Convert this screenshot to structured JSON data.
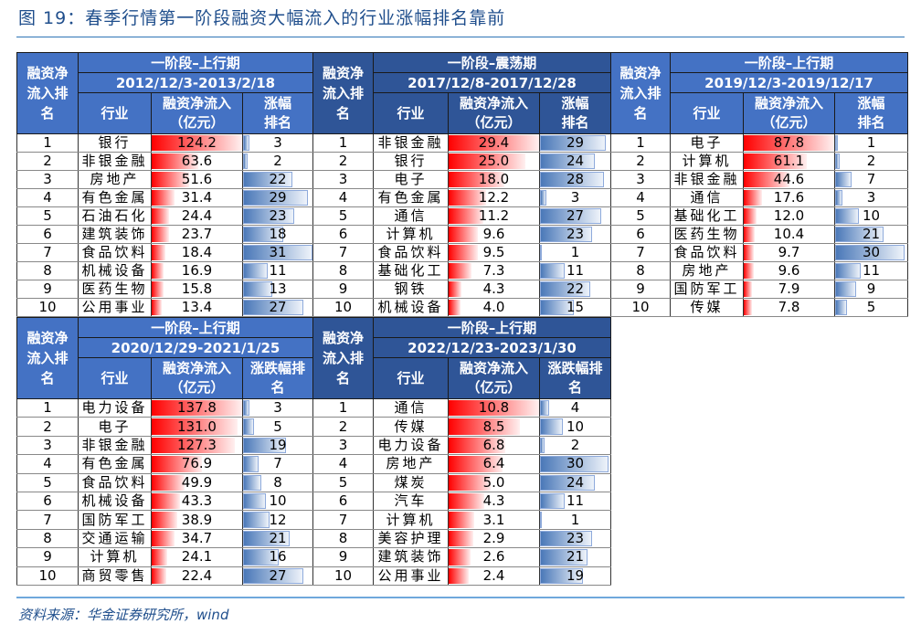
{
  "title": "图 19：春季行情第一阶段融资大幅流入的行业涨幅排名靠前",
  "footer": "资料来源：华金证券研究所，wind",
  "colors": {
    "header_light": "#4472C4",
    "header_dark": "#2F5597",
    "bar_red": "#FF0000",
    "bar_blue": "#4A78B8"
  },
  "headers": {
    "rank": "融资净流入排名",
    "industry": "行业",
    "flow": "融资净流入（亿元）",
    "rise": "涨幅排名",
    "rise_alt": "涨跌幅排名"
  },
  "tables": [
    {
      "phase": "一阶段–上行期",
      "period": "2012/12/3-2013/2/18",
      "rise_header": "涨幅排名",
      "rows": [
        [
          "1",
          "银行",
          "124.2",
          "3"
        ],
        [
          "2",
          "非银金融",
          "63.6",
          "2"
        ],
        [
          "3",
          "房地产",
          "51.6",
          "22"
        ],
        [
          "4",
          "有色金属",
          "31.4",
          "29"
        ],
        [
          "5",
          "石油石化",
          "24.4",
          "23"
        ],
        [
          "6",
          "建筑装饰",
          "23.7",
          "18"
        ],
        [
          "7",
          "食品饮料",
          "18.4",
          "31"
        ],
        [
          "8",
          "机械设备",
          "16.9",
          "11"
        ],
        [
          "9",
          "医药生物",
          "15.8",
          "13"
        ],
        [
          "10",
          "公用事业",
          "13.4",
          "27"
        ]
      ]
    },
    {
      "phase": "一阶段–震荡期",
      "period": "2017/12/8-2017/12/28",
      "rise_header": "涨幅排名",
      "rows": [
        [
          "1",
          "非银金融",
          "29.4",
          "29"
        ],
        [
          "2",
          "银行",
          "25.0",
          "24"
        ],
        [
          "3",
          "电子",
          "18.0",
          "28"
        ],
        [
          "4",
          "有色金属",
          "12.2",
          "3"
        ],
        [
          "5",
          "通信",
          "11.2",
          "27"
        ],
        [
          "6",
          "计算机",
          "9.6",
          "23"
        ],
        [
          "7",
          "食品饮料",
          "9.5",
          "1"
        ],
        [
          "8",
          "基础化工",
          "7.3",
          "11"
        ],
        [
          "9",
          "钢铁",
          "4.3",
          "22"
        ],
        [
          "10",
          "机械设备",
          "4.0",
          "15"
        ]
      ]
    },
    {
      "phase": "一阶段–上行期",
      "period": "2019/12/3-2019/12/17",
      "rise_header": "涨幅排名",
      "rows": [
        [
          "1",
          "电子",
          "87.8",
          "1"
        ],
        [
          "2",
          "计算机",
          "61.1",
          "2"
        ],
        [
          "3",
          "非银金融",
          "44.6",
          "7"
        ],
        [
          "4",
          "通信",
          "17.6",
          "3"
        ],
        [
          "5",
          "基础化工",
          "12.0",
          "10"
        ],
        [
          "6",
          "医药生物",
          "10.4",
          "21"
        ],
        [
          "7",
          "食品饮料",
          "9.7",
          "30"
        ],
        [
          "8",
          "房地产",
          "9.6",
          "11"
        ],
        [
          "9",
          "国防军工",
          "7.9",
          "9"
        ],
        [
          "10",
          "传媒",
          "7.8",
          "5"
        ]
      ]
    },
    {
      "phase": "一阶段–上行期",
      "period": "2020/12/29-2021/1/25",
      "rise_header": "涨跌幅排名",
      "rows": [
        [
          "1",
          "电力设备",
          "137.8",
          "3"
        ],
        [
          "2",
          "电子",
          "131.0",
          "5"
        ],
        [
          "3",
          "非银金融",
          "127.3",
          "19"
        ],
        [
          "4",
          "有色金属",
          "76.9",
          "7"
        ],
        [
          "5",
          "食品饮料",
          "49.9",
          "8"
        ],
        [
          "6",
          "机械设备",
          "43.3",
          "10"
        ],
        [
          "7",
          "国防军工",
          "38.9",
          "12"
        ],
        [
          "8",
          "交通运输",
          "34.7",
          "21"
        ],
        [
          "9",
          "计算机",
          "24.1",
          "16"
        ],
        [
          "10",
          "商贸零售",
          "22.4",
          "27"
        ]
      ]
    },
    {
      "phase": "一阶段–上行期",
      "period": "2022/12/23-2023/1/30",
      "rise_header": "涨跌幅排名",
      "rows": [
        [
          "1",
          "通信",
          "10.8",
          "4"
        ],
        [
          "2",
          "传媒",
          "8.5",
          "10"
        ],
        [
          "3",
          "电力设备",
          "6.8",
          "2"
        ],
        [
          "4",
          "房地产",
          "6.4",
          "30"
        ],
        [
          "5",
          "煤炭",
          "5.0",
          "24"
        ],
        [
          "6",
          "汽车",
          "4.3",
          "11"
        ],
        [
          "7",
          "计算机",
          "3.1",
          "1"
        ],
        [
          "8",
          "美容护理",
          "2.9",
          "23"
        ],
        [
          "9",
          "建筑装饰",
          "2.6",
          "21"
        ],
        [
          "10",
          "公用事业",
          "2.4",
          "19"
        ]
      ]
    }
  ],
  "rise_rank_max": 31
}
